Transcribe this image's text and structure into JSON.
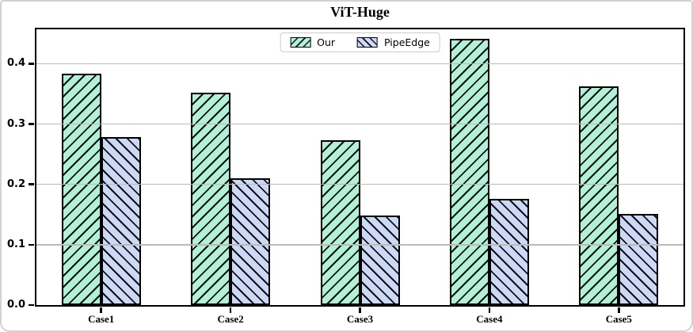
{
  "title": "ViT-Huge",
  "colors": {
    "our_fill": "#b2f0d8",
    "pipeedge_fill": "#ccd9f6",
    "hatch": "#111111",
    "bar_edge": "#000000",
    "grid": "#bababa",
    "frame": "#000000",
    "card_border": "#d2d2d2"
  },
  "legend": {
    "items": [
      {
        "label": "Our",
        "hatch": "/"
      },
      {
        "label": "PipeEdge",
        "hatch": "\\"
      }
    ]
  },
  "chart_data": {
    "type": "bar",
    "title": "ViT-Huge",
    "categories": [
      "Case1",
      "Case2",
      "Case3",
      "Case4",
      "Case5"
    ],
    "series": [
      {
        "name": "Our",
        "hatch": "/",
        "fill": "#b2f0d8",
        "values": [
          0.383,
          0.352,
          0.273,
          0.441,
          0.363
        ]
      },
      {
        "name": "PipeEdge",
        "hatch": "\\",
        "fill": "#ccd9f6",
        "values": [
          0.278,
          0.21,
          0.148,
          0.176,
          0.151
        ]
      }
    ],
    "xlabel": "",
    "ylabel": "",
    "yticks": [
      0.0,
      0.1,
      0.2,
      0.3,
      0.4
    ],
    "ytick_labels": [
      "0.0",
      "0.1",
      "0.2",
      "0.3",
      "0.4"
    ],
    "ylim": [
      0,
      0.457
    ],
    "grid": true,
    "grid_axis": "y",
    "grid_over_bars": true,
    "legend_position": "upper center",
    "bar_width_fraction": 0.305
  }
}
